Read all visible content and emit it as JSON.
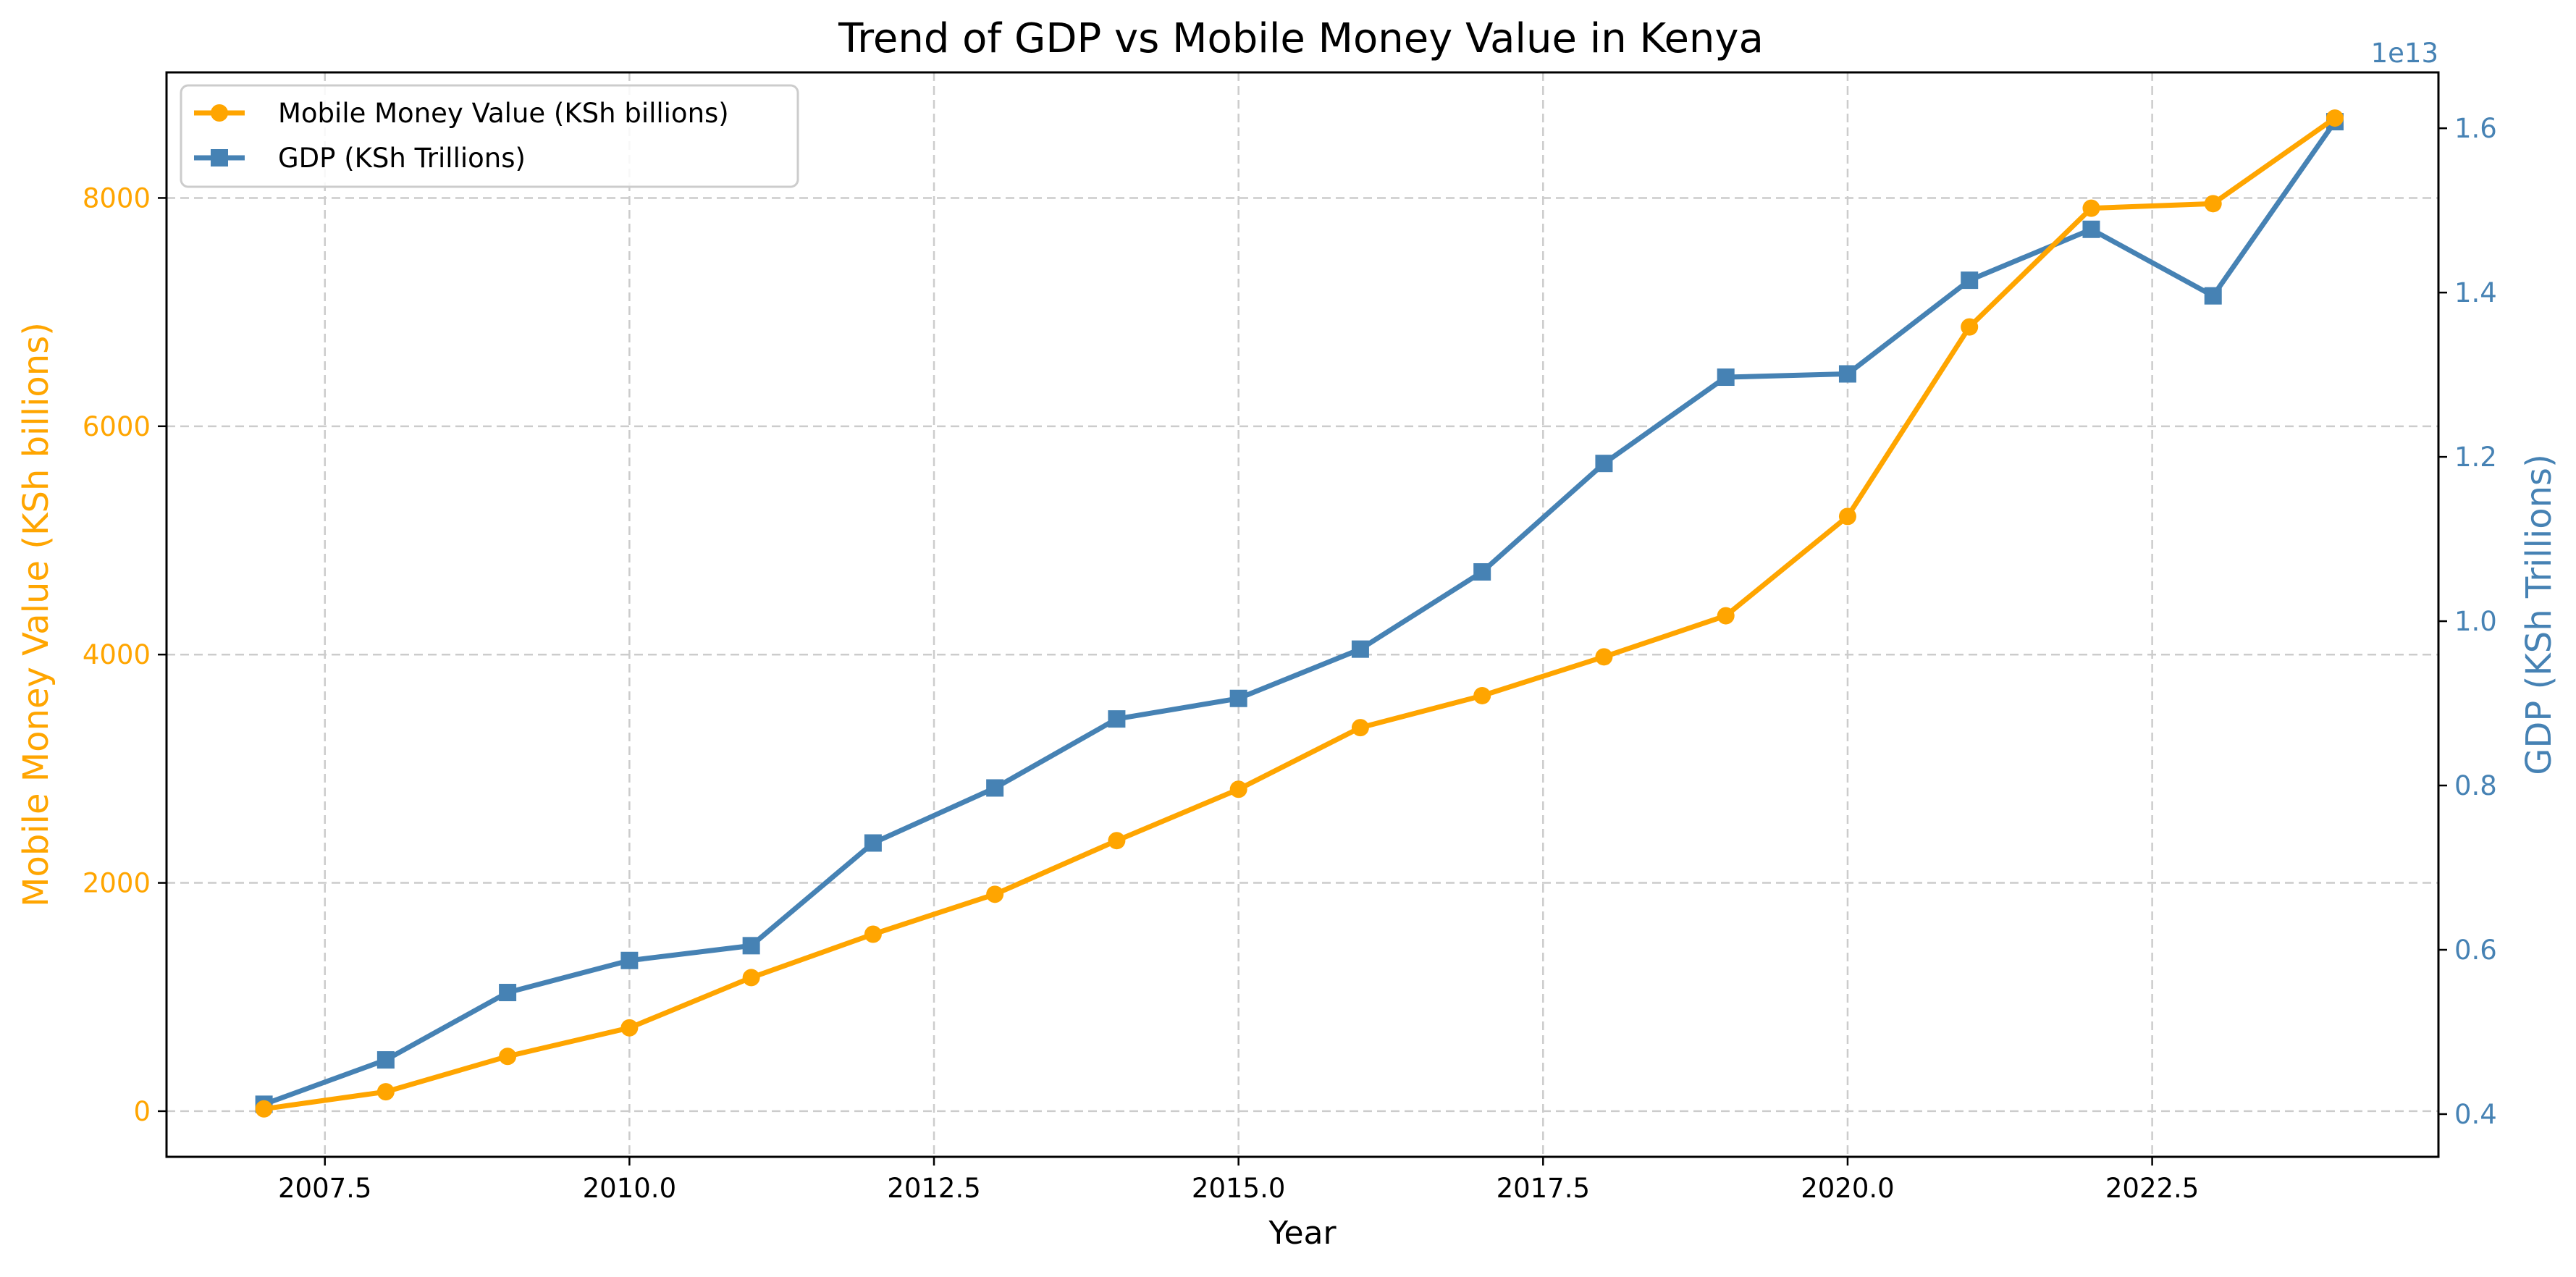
{
  "colors": {
    "mobile": "#FFA500",
    "gdp": "#4682B4",
    "grid": "#cccccc",
    "axis": "#000000"
  },
  "chart_data": {
    "type": "line",
    "title": "Trend of GDP vs Mobile Money Value in Kenya",
    "xlabel": "Year",
    "ylabel_left": "Mobile Money Value (KSh billions)",
    "ylabel_right": "GDP (KSh Trillions)",
    "right_axis_offset_label": "1e13",
    "xlim": [
      2006.2,
      2024.85
    ],
    "ylim_left": [
      -400,
      9100
    ],
    "ylim_right": [
      3.48,
      16.68
    ],
    "xticks": [
      2007.5,
      2010.0,
      2012.5,
      2015.0,
      2017.5,
      2020.0,
      2022.5
    ],
    "xtick_labels": [
      "2007.5",
      "2010.0",
      "2012.5",
      "2015.0",
      "2017.5",
      "2020.0",
      "2022.5"
    ],
    "yticks_left": [
      0,
      2000,
      4000,
      6000,
      8000
    ],
    "ytick_labels_left": [
      "0",
      "2000",
      "4000",
      "6000",
      "8000"
    ],
    "yticks_right": [
      4,
      6,
      8,
      10,
      12,
      14,
      16
    ],
    "ytick_labels_right": [
      "0.4",
      "0.6",
      "0.8",
      "1.0",
      "1.2",
      "1.4",
      "1.6"
    ],
    "grid": true,
    "legend_position": "upper-left",
    "x": [
      2007,
      2008,
      2009,
      2010,
      2011,
      2012,
      2013,
      2014,
      2015,
      2016,
      2017,
      2018,
      2019,
      2020,
      2021,
      2022,
      2023,
      2024
    ],
    "series": [
      {
        "name": "Mobile Money Value (KSh billions)",
        "axis": "left",
        "marker": "circle",
        "values": [
          20,
          170,
          480,
          730,
          1170,
          1550,
          1900,
          2370,
          2820,
          3360,
          3640,
          3980,
          4340,
          5210,
          6870,
          7910,
          7950,
          8700
        ]
      },
      {
        "name": "GDP (KSh Trillions)",
        "axis": "right",
        "unit_multiplier": "1e12",
        "marker": "square",
        "values": [
          4.12,
          4.66,
          5.48,
          5.87,
          6.05,
          7.3,
          7.97,
          8.81,
          9.06,
          9.66,
          10.6,
          11.92,
          12.97,
          13.01,
          14.15,
          14.77,
          13.96,
          16.08
        ]
      }
    ]
  }
}
